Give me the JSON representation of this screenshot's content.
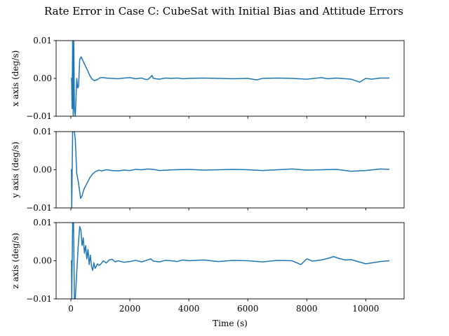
{
  "chart_data": {
    "type": "line",
    "title": "Rate Error in Case C: CubeSat with Initial Bias and Attitude Errors",
    "xlabel": "Time (s)",
    "xlim": [
      -500,
      11300
    ],
    "xticks": [
      0,
      2000,
      4000,
      6000,
      8000,
      10000
    ],
    "xtick_labels": [
      "0",
      "2000",
      "4000",
      "6000",
      "8000",
      "10000"
    ],
    "grid": false,
    "line_color": "#1f77b4",
    "subplots": [
      {
        "ylabel": "x axis (deg/s)",
        "ylim": [
          -0.01,
          0.01
        ],
        "yticks": [
          -0.01,
          0.0,
          0.01
        ],
        "ytick_labels": [
          "−0.01",
          "0.00",
          "0.01"
        ],
        "x": [
          0,
          10,
          25,
          40,
          60,
          80,
          100,
          120,
          150,
          170,
          200,
          230,
          260,
          300,
          350,
          400,
          480,
          560,
          640,
          720,
          800,
          900,
          1000,
          1100,
          1200,
          1400,
          1600,
          1800,
          2000,
          2200,
          2400,
          2500,
          2600,
          2700,
          2750,
          2800,
          3000,
          3200,
          3400,
          3600,
          3800,
          4000,
          4500,
          5000,
          5500,
          6000,
          6300,
          6500,
          7000,
          7500,
          8000,
          8500,
          8700,
          9000,
          9500,
          9800,
          10000,
          10200,
          10500,
          10800
        ],
        "y": [
          0.0,
          0.0,
          0.0,
          -0.008,
          0.01,
          -0.01,
          0.01,
          -0.008,
          -0.01,
          -0.006,
          0.0,
          -0.0025,
          -0.0022,
          0.005,
          0.0057,
          0.0048,
          0.0035,
          0.0022,
          0.0008,
          -0.0002,
          -0.0006,
          -0.0003,
          0.0002,
          0.0002,
          0.0001,
          0.0,
          -0.0001,
          0.0001,
          0.0002,
          -0.0001,
          0.0001,
          -0.0002,
          -0.0003,
          0.0003,
          0.0008,
          0.0,
          -0.0002,
          0.0001,
          0.0,
          0.0001,
          -0.0001,
          0.0,
          0.0001,
          0.0,
          -0.0001,
          0.0,
          -0.0004,
          0.0,
          0.0001,
          0.0,
          -0.0002,
          0.0002,
          -0.0001,
          0.0001,
          -0.0002,
          -0.001,
          0.0,
          -0.0002,
          0.0001,
          0.0001
        ]
      },
      {
        "ylabel": "y axis (deg/s)",
        "ylim": [
          -0.01,
          0.01
        ],
        "yticks": [
          -0.01,
          0.0,
          0.01
        ],
        "ytick_labels": [
          "−0.01",
          "0.00",
          "0.01"
        ],
        "x": [
          0,
          10,
          20,
          30,
          60,
          90,
          120,
          150,
          200,
          250,
          300,
          330,
          380,
          450,
          550,
          650,
          750,
          850,
          950,
          1050,
          1200,
          1400,
          1600,
          1800,
          2000,
          2200,
          2400,
          2600,
          2800,
          3000,
          3500,
          4000,
          4500,
          5000,
          5500,
          6000,
          6500,
          7000,
          7500,
          8000,
          8500,
          9000,
          9500,
          10000,
          10500,
          10800
        ],
        "y": [
          0.0,
          0.0,
          0.0,
          -0.01,
          0.01,
          0.01,
          0.01,
          0.008,
          -0.001,
          -0.003,
          -0.0058,
          -0.0075,
          -0.0068,
          -0.005,
          -0.0035,
          -0.002,
          -0.001,
          -0.0004,
          -0.0001,
          -0.0003,
          0.0,
          -0.0002,
          -0.0003,
          -0.0001,
          -0.0002,
          0.0001,
          0.0,
          0.0002,
          0.0001,
          -0.0002,
          0.0,
          0.0001,
          -0.0001,
          0.0,
          0.0001,
          0.0,
          -0.0002,
          0.0,
          0.0002,
          -0.0001,
          0.0,
          0.0001,
          -0.0004,
          -0.0002,
          0.0002,
          0.0001
        ]
      },
      {
        "ylabel": "z axis (deg/s)",
        "ylim": [
          -0.01,
          0.01
        ],
        "yticks": [
          -0.01,
          0.0,
          0.01
        ],
        "ytick_labels": [
          "−0.01",
          "0.00",
          "0.01"
        ],
        "x": [
          0,
          10,
          20,
          30,
          60,
          90,
          120,
          150,
          200,
          250,
          300,
          340,
          380,
          420,
          460,
          500,
          540,
          580,
          620,
          660,
          700,
          740,
          780,
          820,
          860,
          900,
          950,
          1000,
          1100,
          1200,
          1300,
          1400,
          1500,
          1600,
          1800,
          2000,
          2200,
          2400,
          2600,
          2700,
          2800,
          3000,
          3200,
          3400,
          3600,
          3800,
          4000,
          4500,
          5000,
          5500,
          6000,
          6500,
          7000,
          7500,
          7800,
          8000,
          8200,
          8500,
          8800,
          8900,
          9100,
          9300,
          9500,
          10000,
          10500,
          10800
        ],
        "y": [
          0.0,
          0.0,
          0.0,
          -0.01,
          0.01,
          0.01,
          -0.01,
          -0.01,
          -0.003,
          0.004,
          0.009,
          0.008,
          0.004,
          0.006,
          0.002,
          0.004,
          0.0005,
          0.003,
          -0.001,
          0.0015,
          -0.0015,
          -0.0025,
          -0.0005,
          -0.002,
          -0.0015,
          -0.0008,
          -0.0012,
          -0.001,
          0.0,
          -0.0006,
          0.0002,
          0.0004,
          -0.0003,
          0.0,
          -0.0004,
          -0.0002,
          0.0001,
          -0.0003,
          0.0002,
          0.0005,
          -0.0001,
          -0.0003,
          0.0001,
          0.0,
          -0.0002,
          0.0002,
          0.0,
          0.0002,
          -0.0002,
          0.0001,
          0.0,
          -0.0003,
          0.0001,
          0.0,
          -0.001,
          0.0005,
          -0.0001,
          0.0002,
          0.0008,
          0.0011,
          0.0006,
          0.0002,
          0.0003,
          -0.0008,
          -0.0002,
          0.0
        ]
      }
    ]
  }
}
